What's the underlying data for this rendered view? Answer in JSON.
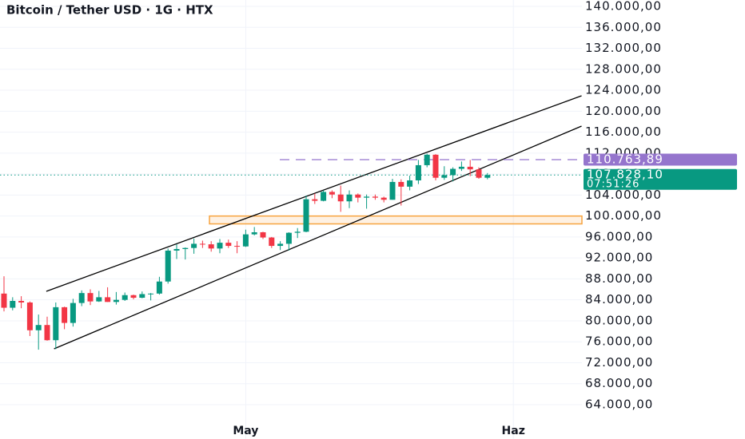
{
  "chart_data": {
    "type": "candlestick",
    "title": "Bitcoin / Tether USD · 1G · HTX",
    "categories": [
      null,
      null,
      null,
      null,
      null,
      null,
      null,
      null,
      null,
      null,
      null,
      null,
      null,
      null,
      null,
      null,
      null,
      null,
      null,
      null,
      null,
      null,
      null,
      null,
      null,
      null,
      null,
      null,
      "May",
      null,
      null,
      null,
      null,
      null,
      null,
      null,
      null,
      null,
      null,
      null,
      null,
      null,
      null,
      null,
      null,
      null,
      null,
      null,
      null,
      null,
      null,
      null,
      null,
      null,
      null,
      null,
      null,
      null,
      null,
      "Haz"
    ],
    "open": [
      85200,
      82500,
      83800,
      83500,
      78200,
      79200,
      76300,
      82600,
      79600,
      83400,
      85300,
      83700,
      84500,
      83600,
      84000,
      84900,
      84400,
      85100,
      85200,
      87500,
      93400,
      93700,
      93900,
      94700,
      94600,
      93800,
      94900,
      94300,
      94200,
      96500,
      96900,
      95900,
      94300,
      94700,
      96800,
      97000,
      103200,
      102900,
      104600,
      104100,
      102800,
      104100,
      103500,
      103700,
      103500,
      103100,
      106500,
      105600,
      106800,
      109700,
      111700,
      107300,
      107800,
      109000,
      109400,
      108900,
      107300,
      null,
      null,
      null
    ],
    "high": [
      88500,
      84500,
      84700,
      83700,
      81200,
      80800,
      83500,
      82700,
      84200,
      85800,
      86000,
      85700,
      86400,
      85500,
      85400,
      85000,
      85600,
      85300,
      88400,
      93800,
      94600,
      94000,
      95700,
      95300,
      95200,
      95600,
      95500,
      95200,
      97400,
      97900,
      97000,
      96000,
      95200,
      96900,
      97700,
      103900,
      104300,
      104900,
      104900,
      105800,
      104900,
      104300,
      104100,
      104100,
      103700,
      107100,
      107000,
      107700,
      110700,
      111900,
      111800,
      109500,
      109300,
      110400,
      110700,
      109300,
      108200,
      null,
      null,
      null
    ],
    "low": [
      81800,
      82000,
      82400,
      77100,
      74500,
      76200,
      74600,
      78400,
      78900,
      82800,
      83000,
      83600,
      83600,
      83100,
      83800,
      84100,
      84300,
      83900,
      85000,
      87100,
      91800,
      91700,
      92800,
      93900,
      93200,
      92900,
      93900,
      92900,
      94100,
      96300,
      95600,
      93900,
      93500,
      93400,
      95800,
      96900,
      102300,
      102800,
      103400,
      100800,
      101500,
      102600,
      101400,
      103100,
      102600,
      103100,
      102000,
      104900,
      106100,
      109300,
      106800,
      106900,
      106600,
      108600,
      107600,
      107100,
      107000,
      null,
      null,
      null
    ],
    "close": [
      82500,
      83800,
      83500,
      78200,
      79200,
      76300,
      82600,
      79600,
      83400,
      85300,
      83700,
      84500,
      83600,
      84000,
      84900,
      84400,
      85100,
      85200,
      87500,
      93400,
      93700,
      93900,
      94700,
      94600,
      93800,
      94900,
      94300,
      94200,
      96500,
      96900,
      95900,
      94300,
      94700,
      96800,
      97000,
      103200,
      102900,
      104600,
      104100,
      102800,
      104100,
      103500,
      103700,
      103500,
      103100,
      106500,
      105600,
      106800,
      109700,
      111700,
      107300,
      107800,
      109000,
      109400,
      108900,
      107300,
      107828.1,
      null,
      null,
      null
    ],
    "up_color": "#089981",
    "down_color": "#f23645",
    "ylim": [
      57450,
      141220
    ],
    "yticks": [
      {
        "value": 140000,
        "label": "140.000,00"
      },
      {
        "value": 136000,
        "label": "136.000,00"
      },
      {
        "value": 132000,
        "label": "132.000,00"
      },
      {
        "value": 128000,
        "label": "128.000,00"
      },
      {
        "value": 124000,
        "label": "124.000,00"
      },
      {
        "value": 120000,
        "label": "120.000,00"
      },
      {
        "value": 116000,
        "label": "116.000,00"
      },
      {
        "value": 112000,
        "label": "112.000,00"
      },
      {
        "value": 108000,
        "label": "108.000,00"
      },
      {
        "value": 104000,
        "label": "104.000,00"
      },
      {
        "value": 100000,
        "label": "100.000,00"
      },
      {
        "value": 96000,
        "label": "96.000,00"
      },
      {
        "value": 92000,
        "label": "92.000,00"
      },
      {
        "value": 88000,
        "label": "88.000,00"
      },
      {
        "value": 84000,
        "label": "84.000,00"
      },
      {
        "value": 80000,
        "label": "80.000,00"
      },
      {
        "value": 76000,
        "label": "76.000,00"
      },
      {
        "value": 72000,
        "label": "72.000,00"
      },
      {
        "value": 68000,
        "label": "68.000,00"
      },
      {
        "value": 64000,
        "label": "64.000,00"
      }
    ],
    "grid": true,
    "price_lines": [
      {
        "value": 110763.89,
        "label": "110.763,89",
        "color": "#9575cd",
        "style": "dashed"
      },
      {
        "value": 107828.1,
        "label": "107.828,10",
        "countdown": "07:51:26",
        "color": "#089981",
        "style": "dotted"
      }
    ],
    "channel": [
      {
        "start": [
          4.9,
          85630
        ],
        "end": [
          66.9,
          122940
        ]
      },
      {
        "start": [
          5.8,
          74660
        ],
        "end": [
          66.9,
          117150
        ]
      }
    ],
    "zone": {
      "x_start": 23.8,
      "ylim": [
        98500,
        100000
      ],
      "color": "#f7a440"
    }
  }
}
